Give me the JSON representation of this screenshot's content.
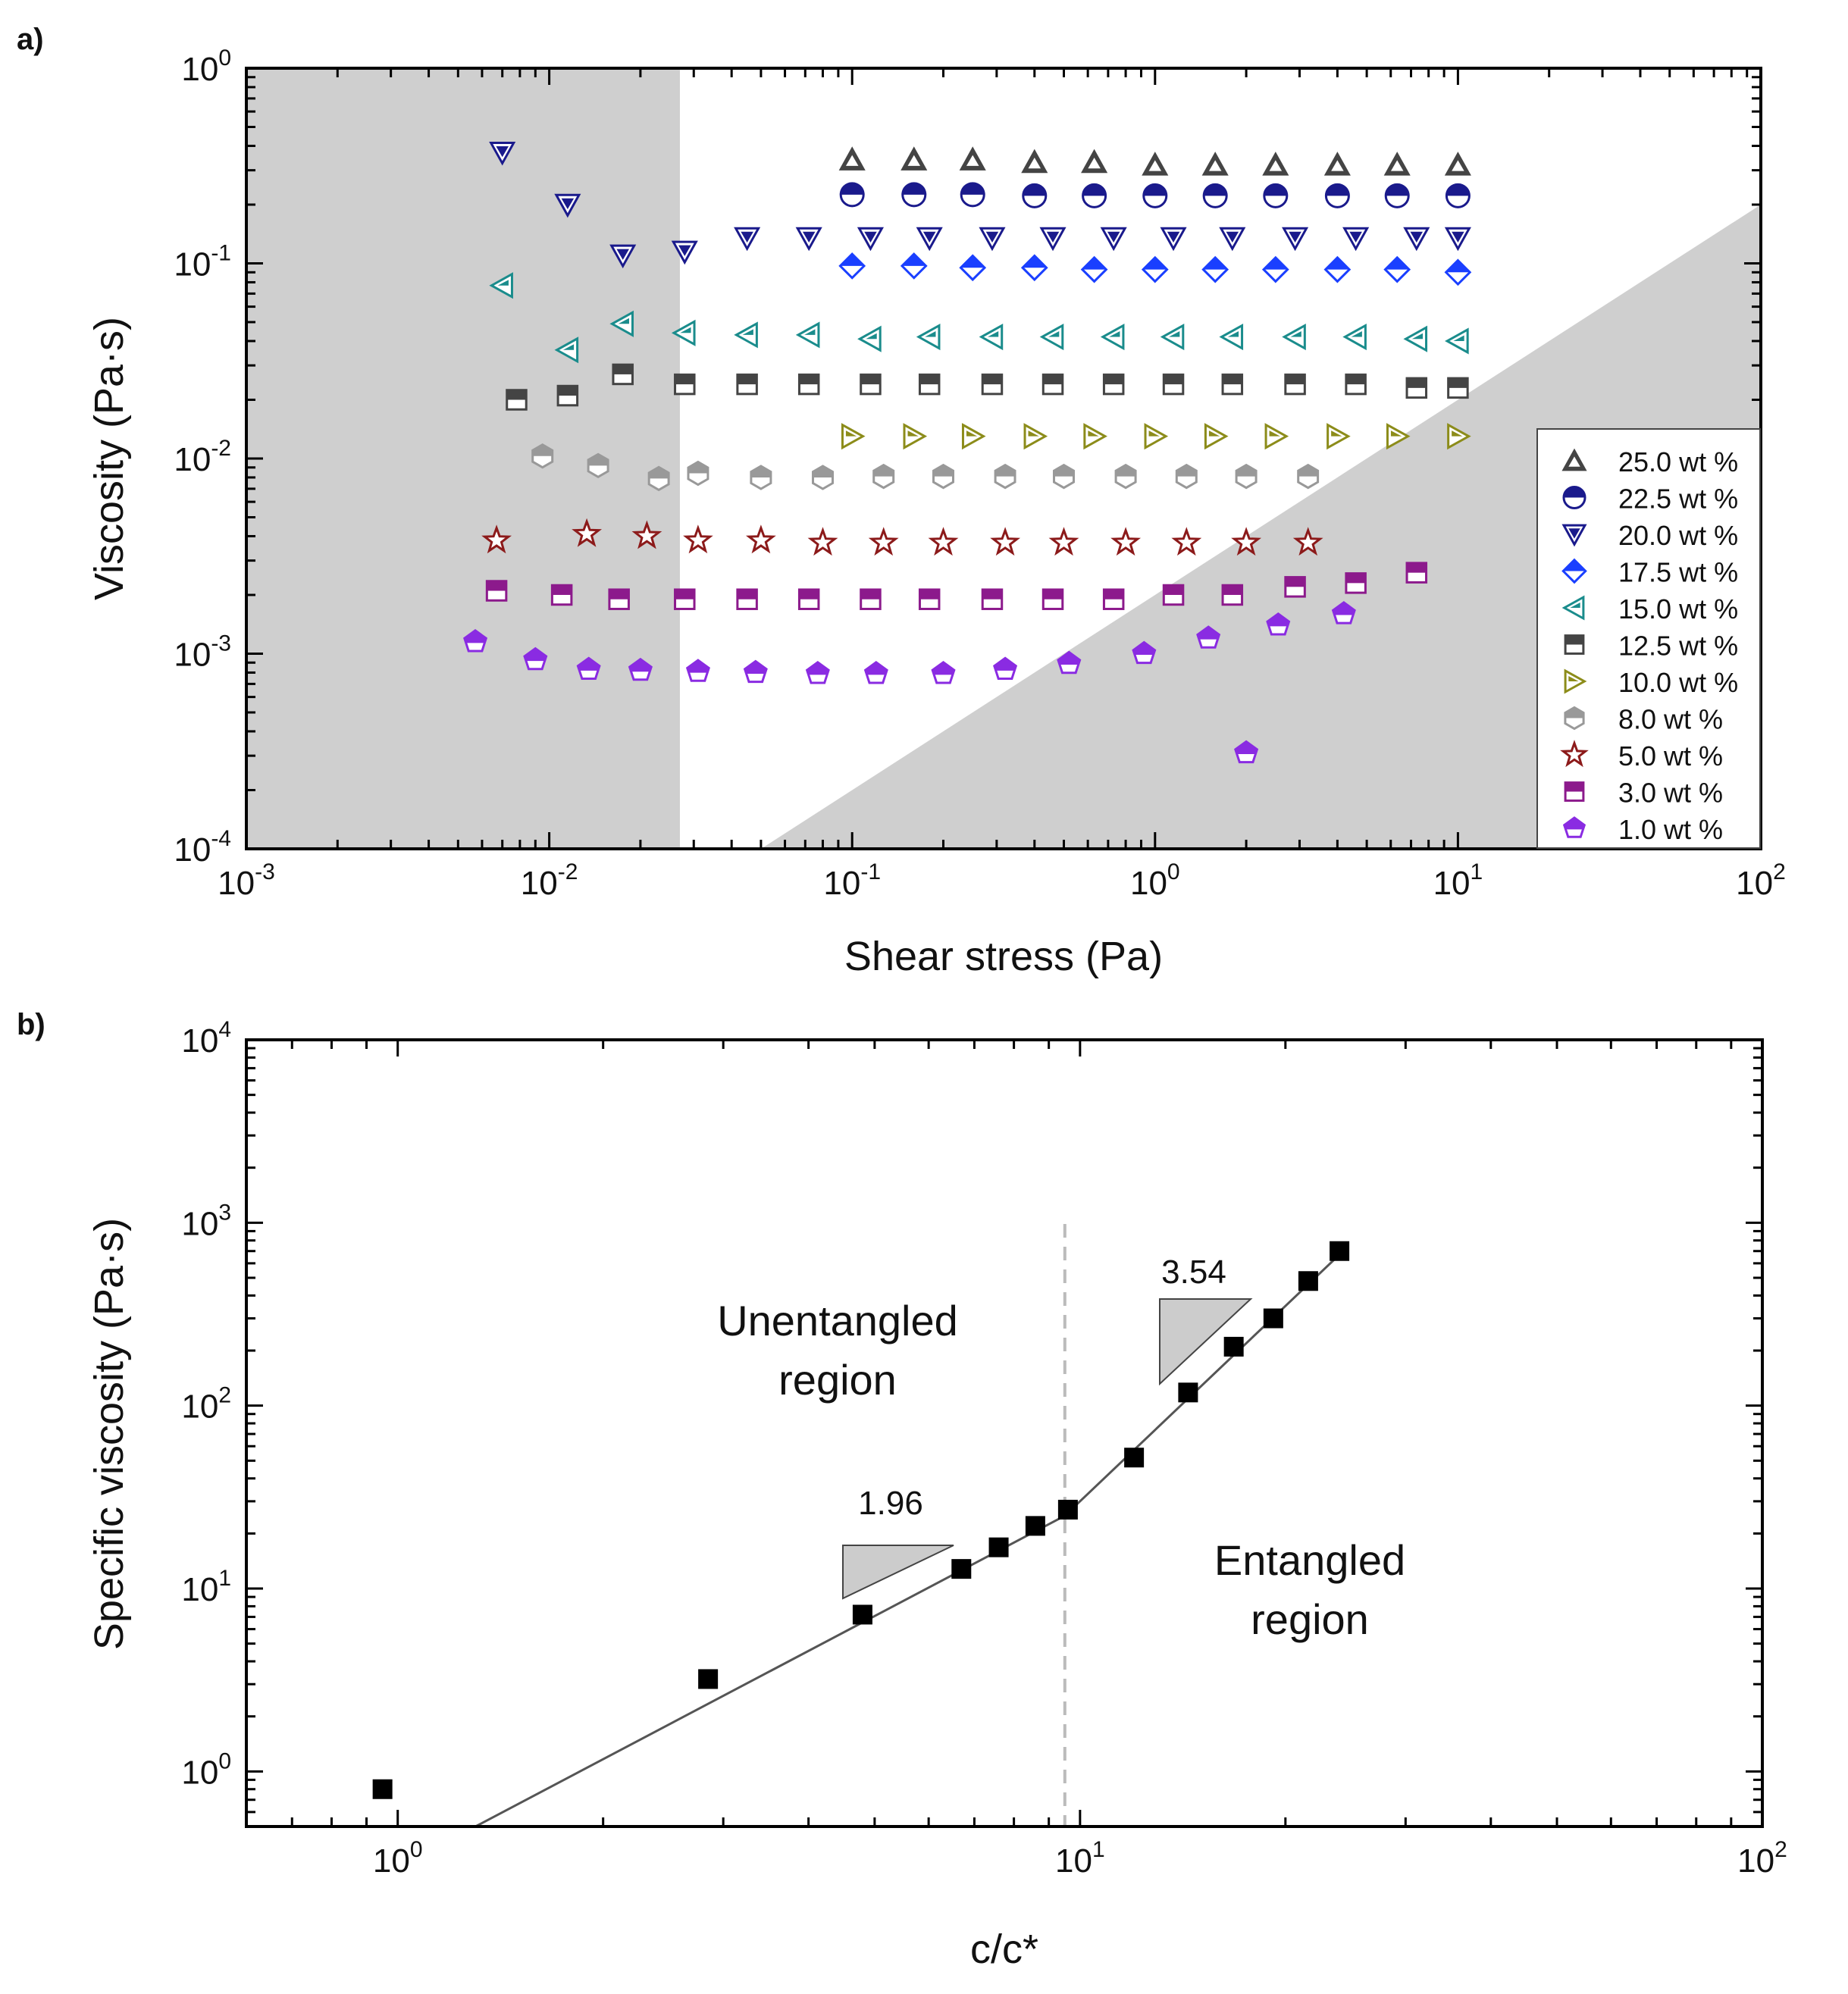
{
  "panel_labels": {
    "a": "a)",
    "b": "b)"
  },
  "chart_data": [
    {
      "type": "scatter",
      "panel": "a",
      "xlabel": "Shear stress (Pa)",
      "ylabel": "Viscosity (Pa·s)",
      "xscale": "log",
      "yscale": "log",
      "xlim": [
        0.001,
        100
      ],
      "ylim": [
        0.0001,
        1
      ],
      "xticks": [
        {
          "base": "10",
          "exp": "-3"
        },
        {
          "base": "10",
          "exp": "-2"
        },
        {
          "base": "10",
          "exp": "-1"
        },
        {
          "base": "10",
          "exp": "0"
        },
        {
          "base": "10",
          "exp": "1"
        },
        {
          "base": "10",
          "exp": "2"
        }
      ],
      "yticks": [
        {
          "base": "10",
          "exp": "-4"
        },
        {
          "base": "10",
          "exp": "-3"
        },
        {
          "base": "10",
          "exp": "-2"
        },
        {
          "base": "10",
          "exp": "-1"
        },
        {
          "base": "10",
          "exp": "0"
        }
      ],
      "shaded_regions": [
        {
          "kind": "low_torque_limit",
          "x_max": 0.027,
          "color": "#cfcfcf"
        },
        {
          "kind": "inertia_limit",
          "line": [
            [
              0.05,
              0.0001
            ],
            [
              100,
              0.2
            ]
          ],
          "color": "#cfcfcf"
        }
      ],
      "legend_position": "bottom-right",
      "series": [
        {
          "name": "25.0 wt %",
          "marker": "triangle-up",
          "color": "#444444",
          "x": [
            0.1,
            0.16,
            0.25,
            0.4,
            0.63,
            1.0,
            1.58,
            2.5,
            4.0,
            6.3,
            10.0
          ],
          "y": [
            0.34,
            0.34,
            0.34,
            0.33,
            0.33,
            0.32,
            0.32,
            0.32,
            0.32,
            0.32,
            0.32
          ]
        },
        {
          "name": "22.5 wt %",
          "marker": "circle-half",
          "color": "#1a1a8c",
          "x": [
            0.1,
            0.16,
            0.25,
            0.4,
            0.63,
            1.0,
            1.58,
            2.5,
            4.0,
            6.3,
            10.0
          ],
          "y": [
            0.225,
            0.225,
            0.225,
            0.222,
            0.222,
            0.222,
            0.222,
            0.222,
            0.222,
            0.222,
            0.222
          ]
        },
        {
          "name": "20.0 wt %",
          "marker": "triangle-down",
          "color": "#1a1a8c",
          "x": [
            0.007,
            0.0115,
            0.0175,
            0.028,
            0.045,
            0.072,
            0.115,
            0.18,
            0.29,
            0.46,
            0.73,
            1.15,
            1.8,
            2.9,
            4.6,
            7.3,
            10.0
          ],
          "y": [
            0.37,
            0.2,
            0.11,
            0.115,
            0.135,
            0.135,
            0.135,
            0.135,
            0.135,
            0.135,
            0.135,
            0.135,
            0.135,
            0.135,
            0.135,
            0.135,
            0.135
          ]
        },
        {
          "name": "17.5 wt %",
          "marker": "diamond",
          "color": "#1a3fff",
          "x": [
            0.1,
            0.16,
            0.25,
            0.4,
            0.63,
            1.0,
            1.58,
            2.5,
            4.0,
            6.3,
            10.0
          ],
          "y": [
            0.097,
            0.097,
            0.095,
            0.095,
            0.093,
            0.093,
            0.093,
            0.093,
            0.093,
            0.093,
            0.09
          ]
        },
        {
          "name": "15.0 wt %",
          "marker": "triangle-left",
          "color": "#1a8c8c",
          "x": [
            0.007,
            0.0115,
            0.0175,
            0.028,
            0.045,
            0.072,
            0.115,
            0.18,
            0.29,
            0.46,
            0.73,
            1.15,
            1.8,
            2.9,
            4.6,
            7.3,
            10.0
          ],
          "y": [
            0.077,
            0.036,
            0.049,
            0.044,
            0.043,
            0.043,
            0.041,
            0.042,
            0.042,
            0.042,
            0.042,
            0.042,
            0.042,
            0.042,
            0.042,
            0.041,
            0.04
          ]
        },
        {
          "name": "12.5 wt %",
          "marker": "square-half",
          "color": "#444444",
          "x": [
            0.0078,
            0.0115,
            0.0175,
            0.028,
            0.045,
            0.072,
            0.115,
            0.18,
            0.29,
            0.46,
            0.73,
            1.15,
            1.8,
            2.9,
            4.6,
            7.3,
            10.0
          ],
          "y": [
            0.02,
            0.021,
            0.027,
            0.024,
            0.024,
            0.024,
            0.024,
            0.024,
            0.024,
            0.024,
            0.024,
            0.024,
            0.024,
            0.024,
            0.024,
            0.023,
            0.023
          ]
        },
        {
          "name": "10.0 wt %",
          "marker": "triangle-right",
          "color": "#8c8c1a",
          "x": [
            0.1,
            0.16,
            0.25,
            0.4,
            0.63,
            1.0,
            1.58,
            2.5,
            4.0,
            6.3,
            10.0
          ],
          "y": [
            0.013,
            0.013,
            0.013,
            0.013,
            0.013,
            0.013,
            0.013,
            0.013,
            0.013,
            0.013,
            0.013
          ]
        },
        {
          "name": "8.0 wt %",
          "marker": "hexagon",
          "color": "#999999",
          "x": [
            0.0095,
            0.0145,
            0.023,
            0.031,
            0.05,
            0.08,
            0.127,
            0.2,
            0.32,
            0.5,
            0.8,
            1.27,
            2.0,
            3.2
          ],
          "y": [
            0.0103,
            0.0092,
            0.0079,
            0.0084,
            0.008,
            0.008,
            0.0081,
            0.0081,
            0.0081,
            0.0081,
            0.0081,
            0.0081,
            0.0081,
            0.0081
          ]
        },
        {
          "name": "5.0 wt %",
          "marker": "star",
          "color": "#8c1a1a",
          "x": [
            0.0067,
            0.0133,
            0.021,
            0.031,
            0.05,
            0.08,
            0.127,
            0.2,
            0.32,
            0.5,
            0.8,
            1.27,
            2.0,
            3.2
          ],
          "y": [
            0.0038,
            0.0041,
            0.004,
            0.0038,
            0.0038,
            0.0037,
            0.0037,
            0.0037,
            0.0037,
            0.0037,
            0.0037,
            0.0037,
            0.0037,
            0.0037
          ]
        },
        {
          "name": "3.0 wt %",
          "marker": "square-half",
          "color": "#8c1a8c",
          "x": [
            0.0067,
            0.011,
            0.017,
            0.028,
            0.045,
            0.072,
            0.115,
            0.18,
            0.29,
            0.46,
            0.73,
            1.15,
            1.8,
            2.9,
            4.6,
            7.3
          ],
          "y": [
            0.0021,
            0.002,
            0.0019,
            0.0019,
            0.0019,
            0.0019,
            0.0019,
            0.0019,
            0.0019,
            0.0019,
            0.0019,
            0.002,
            0.002,
            0.0022,
            0.0023,
            0.0026
          ]
        },
        {
          "name": "1.0 wt %",
          "marker": "pentagon",
          "color": "#8a2be2",
          "x": [
            0.0057,
            0.009,
            0.0135,
            0.02,
            0.031,
            0.048,
            0.077,
            0.12,
            0.2,
            0.32,
            0.52,
            0.92,
            1.5,
            2.0,
            2.55,
            4.2
          ],
          "y": [
            0.00115,
            0.00093,
            0.00083,
            0.00082,
            0.00081,
            0.0008,
            0.00079,
            0.00079,
            0.00079,
            0.00083,
            0.00089,
            0.001,
            0.0012,
            0.00031,
            0.0014,
            0.0016
          ]
        }
      ]
    },
    {
      "type": "scatter",
      "panel": "b",
      "xlabel": "c/c*",
      "ylabel": "Specific viscosity (Pa·s)",
      "xscale": "log",
      "yscale": "log",
      "xlim": [
        0.6,
        100
      ],
      "ylim": [
        0.5,
        10000
      ],
      "xticks": [
        {
          "base": "10",
          "exp": "0"
        },
        {
          "base": "10",
          "exp": "1"
        },
        {
          "base": "10",
          "exp": "2"
        }
      ],
      "yticks": [
        {
          "base": "10",
          "exp": "0"
        },
        {
          "base": "10",
          "exp": "1"
        },
        {
          "base": "10",
          "exp": "2"
        },
        {
          "base": "10",
          "exp": "3"
        },
        {
          "base": "10",
          "exp": "4"
        }
      ],
      "series": [
        {
          "name": "specific viscosity",
          "marker": "square",
          "color": "#000000",
          "x": [
            0.95,
            2.85,
            4.8,
            6.7,
            7.6,
            8.6,
            9.6,
            12.0,
            14.4,
            16.8,
            19.2,
            21.6,
            24.0
          ],
          "y": [
            0.8,
            3.2,
            7.2,
            12.8,
            16.8,
            22.0,
            27.0,
            52.0,
            118,
            210,
            300,
            480,
            700
          ]
        }
      ],
      "fit_lines": [
        {
          "name": "unentangled fit",
          "slope": 1.96,
          "from": [
            1.3,
            0.5
          ],
          "to": [
            9.5,
            25.0
          ]
        },
        {
          "name": "entangled fit",
          "slope": 3.54,
          "from": [
            9.5,
            25.0
          ],
          "to": [
            24.5,
            720
          ]
        }
      ],
      "c_entanglement": 9.5,
      "slope_labels": [
        "1.96",
        "3.54"
      ],
      "region_labels": {
        "unentangled": [
          "Unentangled",
          "region"
        ],
        "entangled": [
          "Entangled",
          "region"
        ]
      }
    }
  ]
}
